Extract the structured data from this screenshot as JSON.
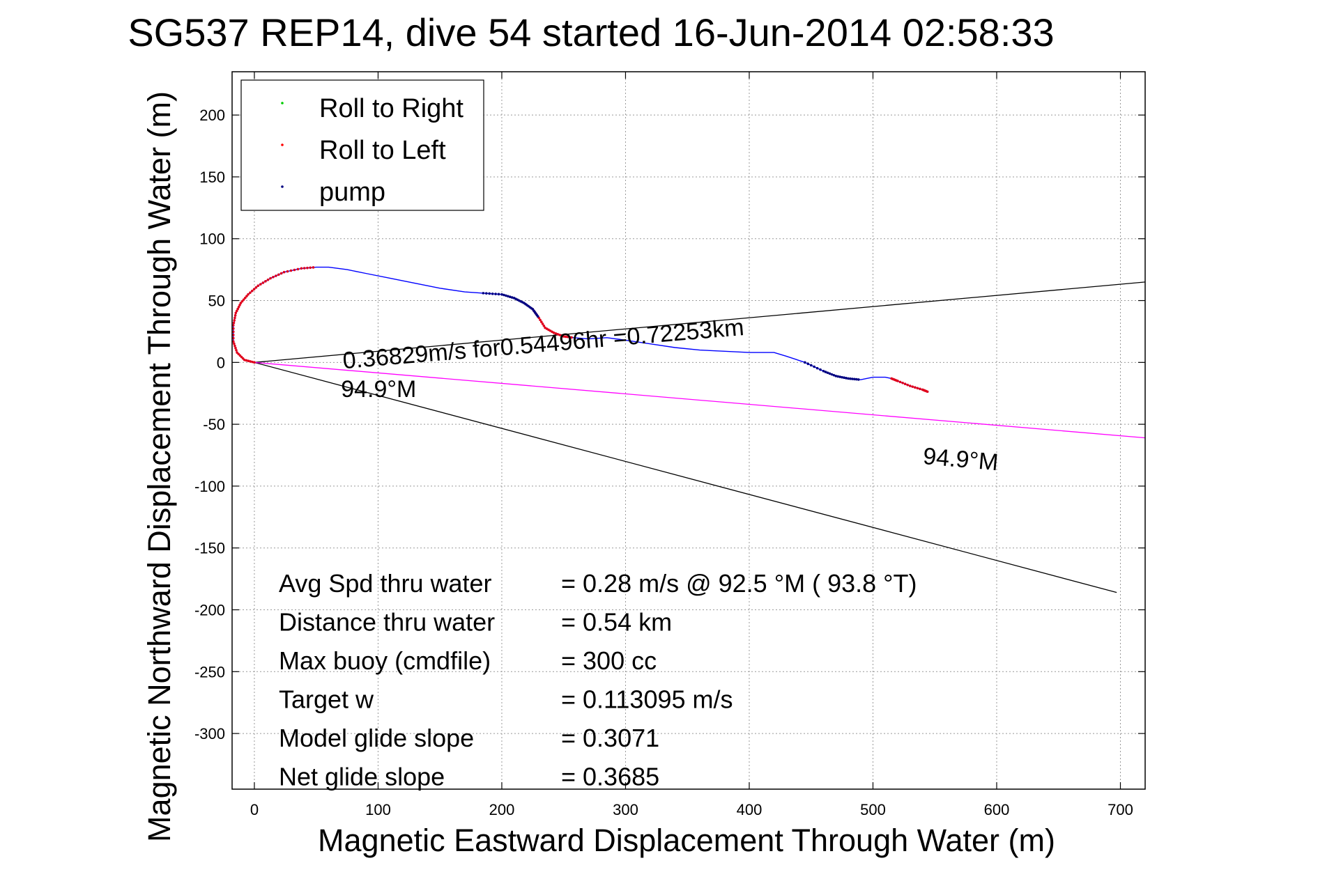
{
  "chart_data": {
    "type": "line",
    "title": "SG537 REP14, dive 54 started 16-Jun-2014 02:58:33",
    "xlabel": "Magnetic Eastward Displacement Through Water (m)",
    "ylabel": "Magnetic Northward Displacement Through Water (m)",
    "xlim": [
      -18,
      720
    ],
    "ylim": [
      -345,
      235
    ],
    "xticks": [
      0,
      100,
      200,
      300,
      400,
      500,
      600,
      700
    ],
    "yticks": [
      200,
      150,
      100,
      50,
      0,
      -50,
      -100,
      -150,
      -200,
      -250,
      -300
    ],
    "grid": true,
    "legend_position": "top-left",
    "legend": [
      {
        "label": "Roll to Right",
        "color": "#00cc00"
      },
      {
        "label": "Roll to Left",
        "color": "#ff0000"
      },
      {
        "label": "pump",
        "color": "#000080"
      }
    ],
    "track": {
      "color": "#0000ff",
      "x": [
        0,
        -8,
        -14,
        -17,
        -17,
        -15,
        -11,
        -5,
        3,
        13,
        24,
        38,
        50,
        60,
        75,
        90,
        110,
        130,
        150,
        170,
        185,
        200,
        210,
        218,
        225,
        230,
        235,
        242,
        250,
        258,
        270,
        285,
        300,
        320,
        340,
        360,
        380,
        400,
        410,
        420,
        430,
        445,
        460,
        470,
        480,
        490,
        500,
        510,
        515,
        520,
        530,
        540,
        545
      ],
      "y": [
        0,
        2,
        8,
        17,
        30,
        40,
        48,
        55,
        62,
        68,
        73,
        76,
        77,
        77,
        75,
        72,
        68,
        64,
        60,
        57,
        56,
        55,
        52,
        48,
        43,
        36,
        28,
        24,
        21,
        20,
        19,
        20,
        18,
        15,
        12,
        10,
        9,
        8,
        8,
        8,
        5,
        0,
        -7,
        -11,
        -13,
        -14,
        -12,
        -12,
        -13,
        -15,
        -19,
        -22,
        -24
      ]
    },
    "markers": {
      "roll_left": [
        {
          "x_range": [
            -17,
            60
          ],
          "path": "start"
        },
        {
          "x_range": [
            222,
            262
          ],
          "path": "mid"
        },
        {
          "x_range": [
            515,
            545
          ],
          "path": "end"
        }
      ],
      "pump": [
        {
          "x_range": [
            185,
            230
          ]
        },
        {
          "x_range": [
            260,
            280
          ]
        },
        {
          "x_range": [
            440,
            490
          ]
        }
      ]
    },
    "reference_lines": [
      {
        "color": "#000000",
        "x": [
          0,
          720
        ],
        "y": [
          0,
          65
        ]
      },
      {
        "color": "#000000",
        "x": [
          0,
          697
        ],
        "y": [
          0,
          -186
        ]
      },
      {
        "color": "#ff00ff",
        "x": [
          0,
          720
        ],
        "y": [
          0,
          -61
        ]
      }
    ],
    "annotations": [
      {
        "text": "0.36829m/s for0.54496hr =0.72253km",
        "x": 72,
        "y": -5,
        "rotation_deg": -4.8
      },
      {
        "text": "94.9°M",
        "x": 70,
        "y": -28
      },
      {
        "text": "94.9°M",
        "x": 540,
        "y": -82,
        "rotation_deg": 5
      }
    ],
    "stats": [
      {
        "label": "Avg Spd thru water",
        "value": "=  0.28 m/s @  92.5 °M ( 93.8 °T)"
      },
      {
        "label": "Distance thru water",
        "value": "=  0.54 km"
      },
      {
        "label": "Max buoy (cmdfile)",
        "value": "= 300 cc"
      },
      {
        "label": "Target w",
        "value": "= 0.113095 m/s"
      },
      {
        "label": "Model glide slope",
        "value": "= 0.3071"
      },
      {
        "label": "Net glide slope",
        "value": "= 0.3685"
      }
    ]
  }
}
